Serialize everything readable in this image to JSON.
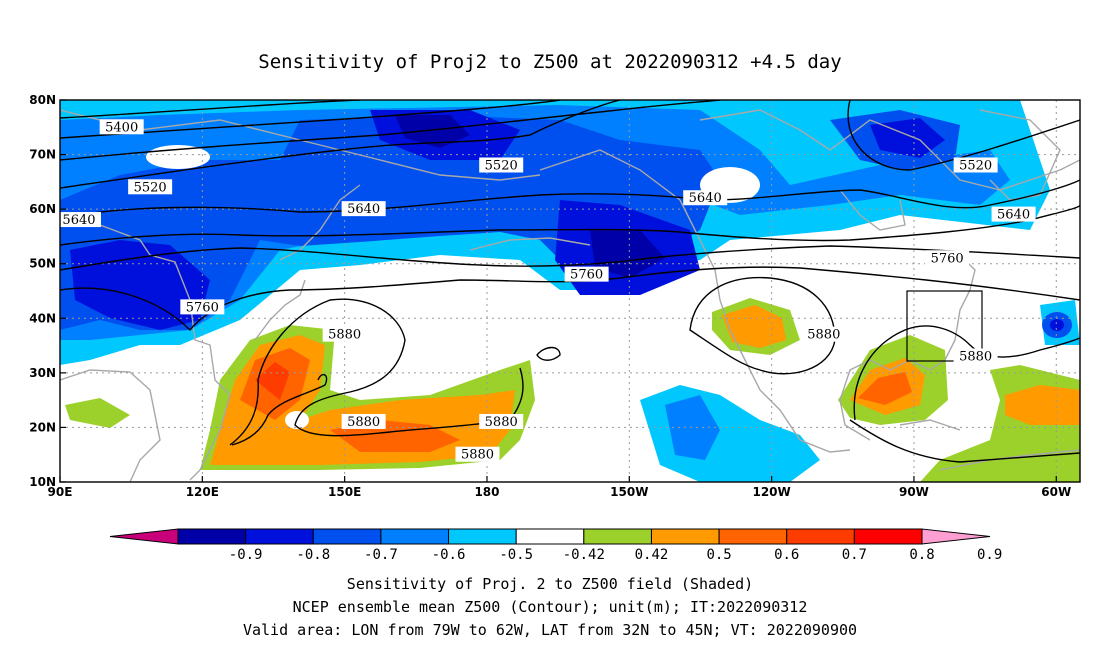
{
  "title": "Sensitivity of Proj2 to Z500 at 2022090312 +4.5 day",
  "map": {
    "lat_ticks": [
      "80N",
      "70N",
      "60N",
      "50N",
      "40N",
      "30N",
      "20N",
      "10N"
    ],
    "lon_ticks": [
      "90E",
      "120E",
      "150E",
      "180",
      "150W",
      "120W",
      "90W",
      "60W"
    ],
    "grid": true,
    "valid_area": {
      "lon": [
        "79W",
        "62W"
      ],
      "lat": [
        "32N",
        "45N"
      ]
    },
    "contour_labels": [
      {
        "text": "5400",
        "lon": 103,
        "lat": 75
      },
      {
        "text": "5520",
        "lon": 109,
        "lat": 64
      },
      {
        "text": "5640",
        "lon": 94,
        "lat": 58
      },
      {
        "text": "5520",
        "lon": 183,
        "lat": 68
      },
      {
        "text": "5640",
        "lon": 154,
        "lat": 60
      },
      {
        "text": "5640",
        "lon": 226,
        "lat": 62
      },
      {
        "text": "5760",
        "lon": 120,
        "lat": 42
      },
      {
        "text": "5760",
        "lon": 201,
        "lat": 48
      },
      {
        "text": "5760",
        "lon": 277,
        "lat": 51
      },
      {
        "text": "5640",
        "lon": 291,
        "lat": 59
      },
      {
        "text": "5520",
        "lon": 283,
        "lat": 68
      },
      {
        "text": "5880",
        "lon": 150,
        "lat": 37
      },
      {
        "text": "5880",
        "lon": 154,
        "lat": 21
      },
      {
        "text": "5880",
        "lon": 183,
        "lat": 21
      },
      {
        "text": "5880",
        "lon": 178,
        "lat": 15
      },
      {
        "text": "5880",
        "lon": 251,
        "lat": 37
      },
      {
        "text": "5880",
        "lon": 283,
        "lat": 33
      }
    ]
  },
  "colorbar": {
    "labels": [
      "-0.9",
      "-0.8",
      "-0.7",
      "-0.6",
      "-0.5",
      "-0.42",
      "0.42",
      "0.5",
      "0.6",
      "0.7",
      "0.8",
      "0.9"
    ],
    "colors": [
      "#0000a8",
      "#0010dc",
      "#0050f0",
      "#0080ff",
      "#00c8ff",
      "#ffffff",
      "#9cd12c",
      "#ff9a00",
      "#ff6400",
      "#ff3c00",
      "#ff0000"
    ],
    "low_extend_color": "#c8007a",
    "high_extend_color": "#ff9ed0"
  },
  "captions": [
    "Sensitivity of Proj. 2 to Z500 field (Shaded)",
    "NCEP ensemble mean Z500 (Contour); unit(m); IT:2022090312",
    "Valid area: LON from 79W to 62W, LAT from 32N to 45N; VT: 2022090900"
  ]
}
